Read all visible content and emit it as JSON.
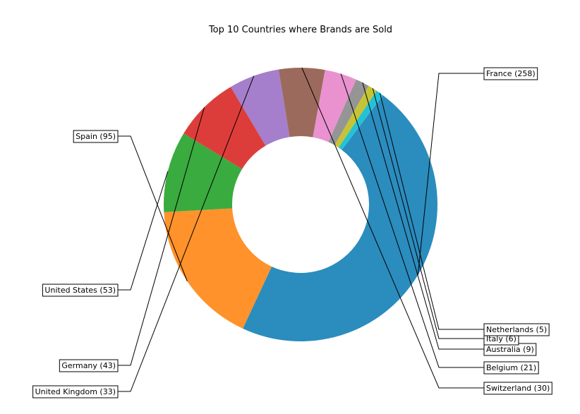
{
  "chart_data": {
    "type": "pie",
    "donut": true,
    "title": "Top 10 Countries where Brands are Sold",
    "series": [
      {
        "name": "France",
        "value": 258,
        "label": "France (258)",
        "color": "#2b8cbe"
      },
      {
        "name": "Spain",
        "value": 95,
        "label": "Spain (95)",
        "color": "#ff922b"
      },
      {
        "name": "United States",
        "value": 53,
        "label": "United States (53)",
        "color": "#3aab3f"
      },
      {
        "name": "Germany",
        "value": 43,
        "label": "Germany (43)",
        "color": "#dd3d3a"
      },
      {
        "name": "United Kingdom",
        "value": 33,
        "label": "United Kingdom (33)",
        "color": "#a57fcb"
      },
      {
        "name": "Switzerland",
        "value": 30,
        "label": "Switzerland (30)",
        "color": "#9c6a5c"
      },
      {
        "name": "Belgium",
        "value": 21,
        "label": "Belgium (21)",
        "color": "#e992cf"
      },
      {
        "name": "Australia",
        "value": 9,
        "label": "Australia (9)",
        "color": "#959595"
      },
      {
        "name": "Italy",
        "value": 6,
        "label": "Italy (6)",
        "color": "#c6c434"
      },
      {
        "name": "Netherlands",
        "value": 5,
        "label": "Netherlands (5)",
        "color": "#24c2d4"
      }
    ]
  }
}
